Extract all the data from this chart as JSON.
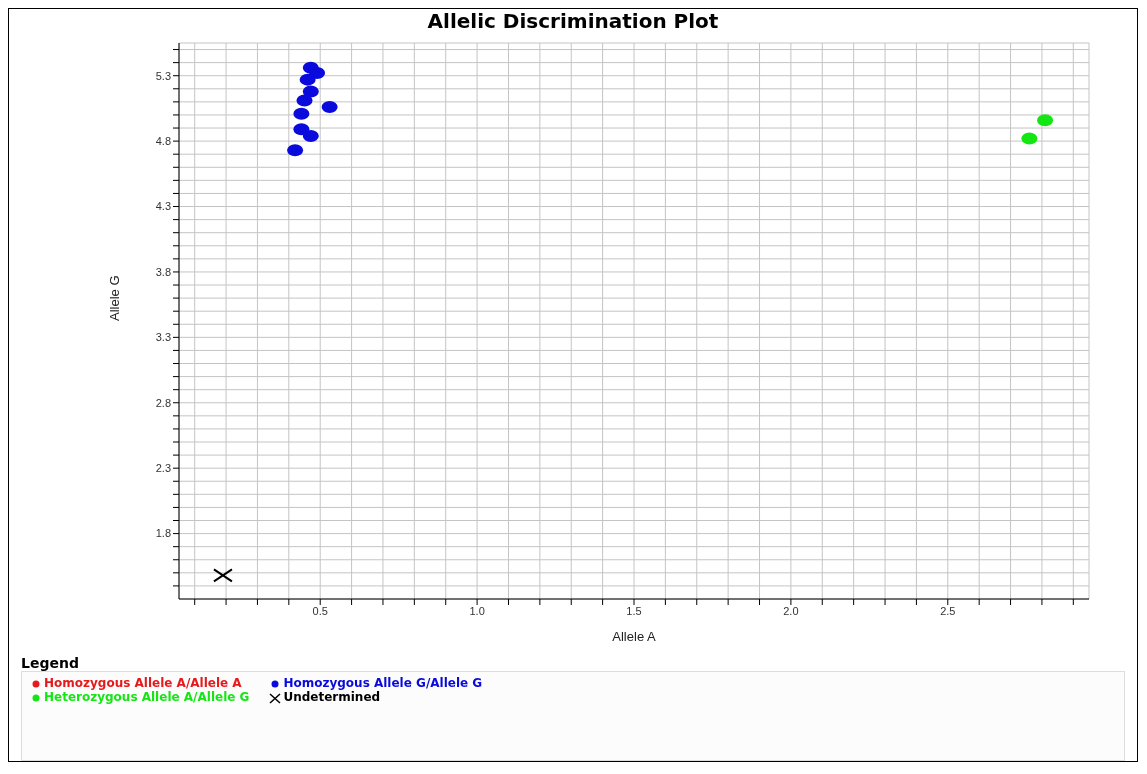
{
  "chart_data": {
    "type": "scatter",
    "title": "Allelic Discrimination Plot",
    "xlabel": "Allele A",
    "ylabel": "Allele G",
    "legend_title": "Legend",
    "legend": "bottom",
    "grid": true,
    "marker": "circle",
    "xlim": [
      0.05,
      2.95
    ],
    "ylim": [
      1.3,
      5.55
    ],
    "xticks": [
      {
        "value": 0.1,
        "label": null
      },
      {
        "value": 0.2,
        "label": null
      },
      {
        "value": 0.3,
        "label": null
      },
      {
        "value": 0.4,
        "label": null
      },
      0.5,
      {
        "value": 0.6,
        "label": null
      },
      {
        "value": 0.7,
        "label": null
      },
      {
        "value": 0.8,
        "label": null
      },
      {
        "value": 0.9,
        "label": null
      },
      {
        "value": 1,
        "label": "1.0"
      },
      {
        "value": 1.1,
        "label": null
      },
      {
        "value": 1.2,
        "label": null
      },
      {
        "value": 1.3,
        "label": null
      },
      {
        "value": 1.4,
        "label": null
      },
      1.5,
      {
        "value": 1.6,
        "label": null
      },
      {
        "value": 1.7,
        "label": null
      },
      {
        "value": 1.8,
        "label": null
      },
      {
        "value": 1.9,
        "label": null
      },
      {
        "value": 2,
        "label": "2.0"
      },
      {
        "value": 2.1,
        "label": null
      },
      {
        "value": 2.2,
        "label": null
      },
      {
        "value": 2.3,
        "label": null
      },
      {
        "value": 2.4,
        "label": null
      },
      2.5,
      {
        "value": 2.6,
        "label": null
      },
      {
        "value": 2.7,
        "label": null
      },
      {
        "value": 2.8,
        "label": null
      },
      {
        "value": 2.9,
        "label": null
      }
    ],
    "yticks": [
      {
        "value": 1.4,
        "label": null
      },
      {
        "value": 1.5,
        "label": null
      },
      {
        "value": 1.6,
        "label": null
      },
      {
        "value": 1.7,
        "label": null
      },
      1.8,
      {
        "value": 1.9,
        "label": null
      },
      {
        "value": 2,
        "label": null
      },
      {
        "value": 2.1,
        "label": null
      },
      {
        "value": 2.2,
        "label": null
      },
      2.3,
      {
        "value": 2.4,
        "label": null
      },
      {
        "value": 2.5,
        "label": null
      },
      {
        "value": 2.6,
        "label": null
      },
      {
        "value": 2.7,
        "label": null
      },
      2.8,
      {
        "value": 2.9,
        "label": null
      },
      {
        "value": 3,
        "label": null
      },
      {
        "value": 3.1,
        "label": null
      },
      {
        "value": 3.2,
        "label": null
      },
      3.3,
      {
        "value": 3.4,
        "label": null
      },
      {
        "value": 3.5,
        "label": null
      },
      {
        "value": 3.6,
        "label": null
      },
      {
        "value": 3.7,
        "label": null
      },
      3.8,
      {
        "value": 3.9,
        "label": null
      },
      {
        "value": 4,
        "label": null
      },
      {
        "value": 4.1,
        "label": null
      },
      {
        "value": 4.2,
        "label": null
      },
      4.3,
      {
        "value": 4.4,
        "label": null
      },
      {
        "value": 4.5,
        "label": null
      },
      {
        "value": 4.6,
        "label": null
      },
      {
        "value": 4.7,
        "label": null
      },
      4.8,
      {
        "value": 4.9,
        "label": null
      },
      {
        "value": 5,
        "label": null
      },
      {
        "value": 5.1,
        "label": null
      },
      {
        "value": 5.2,
        "label": null
      },
      5.3,
      {
        "value": 5.4,
        "label": null
      },
      {
        "value": 5.5,
        "label": null
      }
    ],
    "series": [
      {
        "name": "Homozygous Allele A/Allele A",
        "color": "#e41a1c"
      },
      {
        "name": "Homozygous Allele G/Allele G",
        "color": "#0a0adc",
        "x": [
          0.47,
          0.49,
          0.46,
          0.47,
          0.45,
          0.53,
          0.44,
          0.44,
          0.47,
          0.42
        ],
        "values": [
          5.36,
          5.32,
          5.27,
          5.18,
          5.11,
          5.06,
          5.01,
          4.89,
          4.84,
          4.73
        ]
      },
      {
        "name": "Heterozygous Allele A/Allele G",
        "color": "#14e614",
        "x": [
          2.81,
          2.76
        ],
        "values": [
          4.96,
          4.82
        ]
      },
      {
        "name": "Undetermined",
        "color": "#000000",
        "marker": "cross",
        "x": [
          0.19
        ],
        "values": [
          1.48
        ]
      }
    ]
  }
}
